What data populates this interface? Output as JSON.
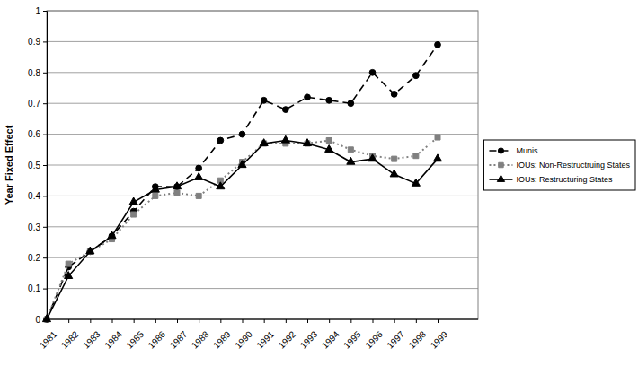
{
  "chart_data": {
    "type": "line",
    "y_label": "Year Fixed Effect",
    "categories": [
      "1981",
      "1982",
      "1983",
      "1984",
      "1985",
      "1986",
      "1987",
      "1988",
      "1989",
      "1990",
      "1991",
      "1992",
      "1993",
      "1994",
      "1995",
      "1996",
      "1997",
      "1998",
      "1999"
    ],
    "series": [
      {
        "name": "Munis",
        "color": "#000000",
        "marker": "circle",
        "line_style": "dashed",
        "values": [
          0,
          0.17,
          0.22,
          0.27,
          0.35,
          0.43,
          0.43,
          0.49,
          0.58,
          0.6,
          0.71,
          0.68,
          0.72,
          0.71,
          0.7,
          0.8,
          0.73,
          0.79,
          0.89
        ]
      },
      {
        "name": "IOUs: Non-Restructruing States",
        "color": "#808080",
        "marker": "square",
        "line_style": "dotted",
        "values": [
          0,
          0.18,
          0.22,
          0.26,
          0.34,
          0.4,
          0.41,
          0.4,
          0.45,
          0.51,
          0.57,
          0.57,
          0.57,
          0.58,
          0.55,
          0.53,
          0.52,
          0.53,
          0.59
        ]
      },
      {
        "name": "IOUs: Restructuring States",
        "color": "#000000",
        "marker": "triangle",
        "line_style": "solid",
        "values": [
          0,
          0.14,
          0.22,
          0.27,
          0.38,
          0.42,
          0.43,
          0.46,
          0.43,
          0.5,
          0.57,
          0.58,
          0.57,
          0.55,
          0.51,
          0.52,
          0.47,
          0.44,
          0.52
        ]
      }
    ],
    "ylim": [
      0,
      1
    ],
    "yticks": [
      0,
      0.1,
      0.2,
      0.3,
      0.4,
      0.5,
      0.6,
      0.7,
      0.8,
      0.9,
      1
    ],
    "grid": true,
    "legend": "right"
  }
}
